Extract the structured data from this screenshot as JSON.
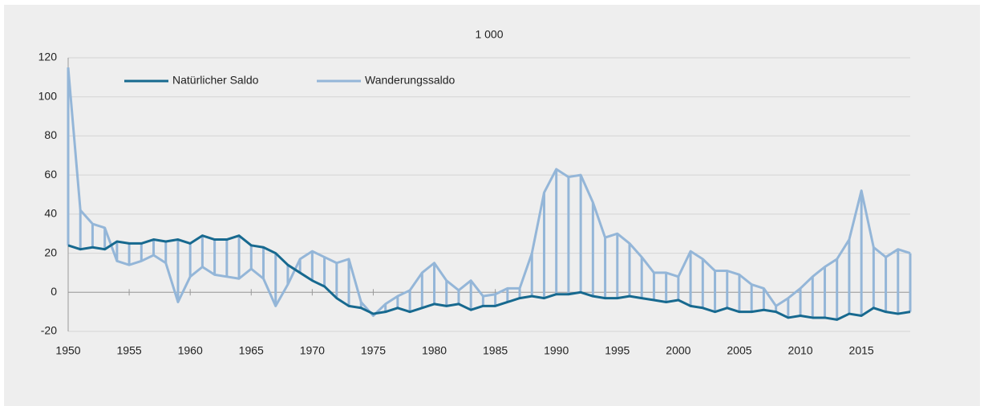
{
  "chart_data": {
    "type": "line",
    "title": "1 000",
    "x": [
      1950,
      1951,
      1952,
      1953,
      1954,
      1955,
      1956,
      1957,
      1958,
      1959,
      1960,
      1961,
      1962,
      1963,
      1964,
      1965,
      1966,
      1967,
      1968,
      1969,
      1970,
      1971,
      1972,
      1973,
      1974,
      1975,
      1976,
      1977,
      1978,
      1979,
      1980,
      1981,
      1982,
      1983,
      1984,
      1985,
      1986,
      1987,
      1988,
      1989,
      1990,
      1991,
      1992,
      1993,
      1994,
      1995,
      1996,
      1997,
      1998,
      1999,
      2000,
      2001,
      2002,
      2003,
      2004,
      2005,
      2006,
      2007,
      2008,
      2009,
      2010,
      2011,
      2012,
      2013,
      2014,
      2015,
      2016,
      2017,
      2018,
      2019
    ],
    "series": [
      {
        "name": "Natürlicher Saldo",
        "color": "#17698f",
        "values": [
          24,
          22,
          23,
          22,
          26,
          25,
          25,
          27,
          26,
          27,
          25,
          29,
          27,
          27,
          29,
          24,
          23,
          20,
          14,
          10,
          6,
          3,
          -3,
          -7,
          -8,
          -11,
          -10,
          -8,
          -10,
          -8,
          -6,
          -7,
          -6,
          -9,
          -7,
          -7,
          -5,
          -3,
          -2,
          -3,
          -1,
          -1,
          0,
          -2,
          -3,
          -3,
          -2,
          -3,
          -4,
          -5,
          -4,
          -7,
          -8,
          -10,
          -8,
          -10,
          -10,
          -9,
          -10,
          -13,
          -12,
          -13,
          -13,
          -14,
          -11,
          -12,
          -8,
          -10,
          -11,
          -10
        ]
      },
      {
        "name": "Wanderungssaldo",
        "color": "#94b6d8",
        "values": [
          115,
          42,
          35,
          33,
          16,
          14,
          16,
          19,
          15,
          -5,
          8,
          13,
          9,
          8,
          7,
          12,
          7,
          -7,
          4,
          17,
          21,
          18,
          15,
          17,
          -5,
          -12,
          -6,
          -2,
          1,
          10,
          15,
          6,
          1,
          6,
          -2,
          -1,
          2,
          2,
          20,
          51,
          63,
          59,
          60,
          46,
          28,
          30,
          25,
          18,
          10,
          10,
          8,
          21,
          17,
          11,
          11,
          9,
          4,
          2,
          -7,
          -3,
          2,
          8,
          13,
          17,
          27,
          52,
          23,
          18,
          22,
          20
        ]
      }
    ],
    "xlim": [
      1950,
      2019
    ],
    "xticks": [
      1950,
      1955,
      1960,
      1965,
      1970,
      1975,
      1980,
      1985,
      1990,
      1995,
      2000,
      2005,
      2010,
      2015
    ],
    "ylim": [
      -20,
      120
    ],
    "yticks": [
      -20,
      0,
      20,
      40,
      60,
      80,
      100,
      120
    ],
    "grid": true,
    "legend": "top-left",
    "range_bars": true
  }
}
